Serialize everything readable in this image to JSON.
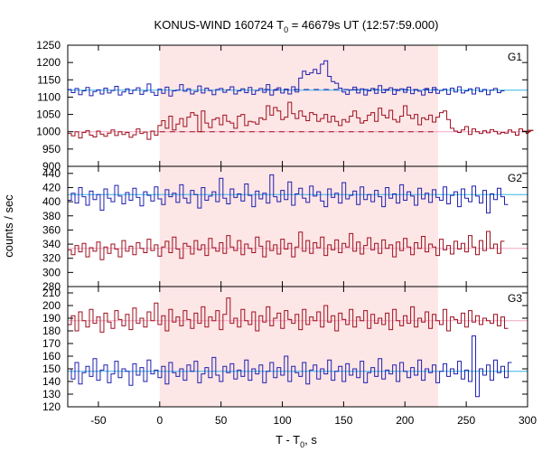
{
  "chart_data": {
    "type": "line",
    "title": {
      "prefix": "KONUS-WIND 160724 T",
      "subscript": "0",
      "suffix": " = 46679s UT (12:57:59.000)"
    },
    "xlabel": {
      "prefix": "T - T",
      "subscript": "0",
      "suffix": ", s"
    },
    "ylabel": "counts / sec",
    "xlim": [
      -75,
      300
    ],
    "x_ticks": [
      -50,
      0,
      50,
      100,
      150,
      200,
      250,
      300
    ],
    "grid": false,
    "shaded_interval": {
      "x": [
        0,
        227
      ],
      "color": "#fde6e6"
    },
    "colors": {
      "blue_series": "#1f1fb0",
      "red_series": "#9e0f1e",
      "blue_fit": "#35b6e8",
      "red_fit": "#f4a6c4",
      "blue_background": "#1f1fb0",
      "red_background": "#9e0f1e"
    },
    "panels": [
      {
        "name": "G1",
        "ylim": [
          900,
          1250
        ],
        "y_ticks": [
          900,
          950,
          1000,
          1050,
          1100,
          1150,
          1200,
          1250
        ],
        "series": [
          {
            "color_key": "blue_series",
            "bin_width": 2.944,
            "values": [
              1122,
              1113,
              1125,
              1107,
              1118,
              1128,
              1104,
              1116,
              1121,
              1109,
              1126,
              1112,
              1119,
              1131,
              1106,
              1115,
              1124,
              1110,
              1120,
              1127,
              1108,
              1117,
              1138,
              1114,
              1105,
              1123,
              1111,
              1129,
              1103,
              1118,
              1120,
              1136,
              1117,
              1124,
              1109,
              1116,
              1132,
              1112,
              1126,
              1119,
              1107,
              1122,
              1125,
              1114,
              1121,
              1130,
              1109,
              1118,
              1124,
              1113,
              1128,
              1108,
              1119,
              1125,
              1114,
              1136,
              1106,
              1120,
              1127,
              1112,
              1123,
              1109,
              1130,
              1115,
              1155,
              1175,
              1165,
              1170,
              1180,
              1168,
              1195,
              1205,
              1160,
              1145,
              1140,
              1126,
              1115,
              1108,
              1121,
              1129,
              1112,
              1124,
              1106,
              1118,
              1125,
              1111,
              1133,
              1113,
              1120,
              1127,
              1108,
              1119,
              1124,
              1114,
              1129,
              1110,
              1121,
              1117,
              1106,
              1125,
              1113,
              1128,
              1111,
              1119,
              1123,
              1108,
              1126,
              1115,
              1130,
              1112,
              1118,
              1124,
              1109,
              1127,
              1116,
              1122,
              1107,
              1120,
              1125,
              1113,
              1118
            ]
          },
          {
            "color_key": "red_series",
            "bin_width": 2.944,
            "values": [
              995,
              988,
              1000,
              982,
              998,
              1003,
              990,
              985,
              1002,
              993,
              987,
              996,
              1005,
              989,
              1000,
              992,
              998,
              984,
              991,
              1008,
              995,
              999,
              978,
              1002,
              990,
              1018,
              1032,
              1010,
              1045,
              1005,
              1022,
              1038,
              1015,
              1042,
              1055,
              1048,
              1000,
              1060,
              1025,
              1012,
              1035,
              1040,
              1020,
              1048,
              1030,
              1025,
              1010,
              1045,
              1050,
              1018,
              1030,
              1028,
              1022,
              1040,
              1035,
              1075,
              1048,
              1070,
              1060,
              1035,
              1042,
              1085,
              1052,
              1038,
              1060,
              1045,
              1032,
              1055,
              1050,
              1030,
              1038,
              1050,
              1028,
              1045,
              1030,
              1018,
              1035,
              1028,
              1045,
              1060,
              1040,
              1025,
              1032,
              1048,
              1055,
              1030,
              1068,
              1048,
              1040,
              1062,
              1035,
              1028,
              1045,
              1075,
              1048,
              1038,
              1050,
              1020,
              1040,
              1035,
              1048,
              1028,
              1042,
              1055,
              1060,
              1035,
              1010,
              1002,
              998,
              1005,
              1015,
              992,
              1008,
              1000,
              995,
              1003,
              997,
              1006,
              1001,
              994,
              998,
              996,
              1005,
              999,
              990,
              1008,
              1002,
              995,
              1000,
              1004
            ]
          }
        ],
        "lines": [
          {
            "color_key": "blue_fit",
            "style": "solid",
            "segments": [
              [
                -75,
                1120
              ],
              [
                300,
                1120
              ]
            ]
          },
          {
            "color_key": "blue_background",
            "style": "dashed",
            "segments": [
              [
                85,
                1122
              ],
              [
                227,
                1122
              ]
            ]
          },
          {
            "color_key": "red_fit",
            "style": "solid",
            "segments": [
              [
                -75,
                1000
              ],
              [
                300,
                1000
              ]
            ]
          },
          {
            "color_key": "red_background",
            "style": "dashed",
            "segments": [
              [
                0,
                1000
              ],
              [
                227,
                1000
              ]
            ]
          }
        ]
      },
      {
        "name": "G2",
        "ylim": [
          280,
          450
        ],
        "y_ticks": [
          280,
          300,
          320,
          340,
          360,
          380,
          400,
          420,
          440
        ],
        "series": [
          {
            "color_key": "blue_series",
            "bin_width": 2.944,
            "values": [
              402,
              412,
              398,
              420,
              407,
              395,
              415,
              403,
              410,
              388,
              418,
              405,
              400,
              423,
              408,
              397,
              413,
              402,
              419,
              406,
              394,
              414,
              409,
              401,
              421,
              404,
              396,
              417,
              407,
              412,
              399,
              424,
              405,
              398,
              416,
              410,
              391,
              420,
              402,
              408,
              414,
              400,
              433,
              405,
              397,
              418,
              406,
              411,
              401,
              425,
              409,
              393,
              415,
              404,
              412,
              398,
              438,
              407,
              400,
              416,
              403,
              428,
              395,
              411,
              419,
              405,
              399,
              422,
              408,
              414,
              401,
              393,
              418,
              406,
              412,
              398,
              427,
              404,
              409,
              415,
              396,
              421,
              403,
              410,
              400,
              416,
              407,
              393,
              420,
              405,
              411,
              398,
              424,
              402,
              414,
              408,
              395,
              419,
              404,
              412,
              399,
              417,
              406,
              402,
              421,
              397,
              409,
              414,
              393,
              418,
              405,
              400,
              422,
              408,
              398,
              416,
              384,
              411,
              403,
              419,
              407,
              396
            ]
          },
          {
            "color_key": "red_series",
            "bin_width": 2.944,
            "values": [
              332,
              325,
              338,
              329,
              341,
              322,
              335,
              330,
              343,
              318,
              336,
              327,
              340,
              333,
              322,
              345,
              330,
              337,
              325,
              342,
              334,
              328,
              347,
              331,
              339,
              323,
              336,
              344,
              328,
              350,
              333,
              320,
              341,
              337,
              326,
              345,
              332,
              339,
              324,
              348,
              335,
              330,
              342,
              327,
              352,
              336,
              331,
              345,
              325,
              340,
              334,
              328,
              350,
              337,
              322,
              344,
              331,
              339,
              326,
              347,
              333,
              341,
              322,
              336,
              357,
              330,
              345,
              327,
              342,
              335,
              350,
              324,
              339,
              332,
              346,
              328,
              341,
              336,
              355,
              330,
              343,
              326,
              338,
              349,
              332,
              341,
              327,
              346,
              334,
              339,
              322,
              343,
              331,
              348,
              336,
              325,
              342,
              334,
              351,
              329,
              340,
              336,
              324,
              347,
              332,
              338,
              326,
              344,
              333,
              341,
              329,
              352,
              336,
              325,
              345,
              331,
              358,
              334,
              340,
              327,
              344
            ]
          }
        ],
        "lines": [
          {
            "color_key": "blue_fit",
            "style": "solid",
            "segments": [
              [
                -75,
                410
              ],
              [
                300,
                410
              ]
            ]
          },
          {
            "color_key": "red_fit",
            "style": "solid",
            "segments": [
              [
                -75,
                334
              ],
              [
                300,
                334
              ]
            ]
          }
        ]
      },
      {
        "name": "G3",
        "ylim": [
          120,
          215
        ],
        "y_ticks": [
          120,
          130,
          140,
          150,
          160,
          170,
          180,
          190,
          200,
          210
        ],
        "series": [
          {
            "color_key": "red_series",
            "bin_width": 2.944,
            "values": [
              185,
              192,
              180,
              195,
              188,
              183,
              197,
              186,
              191,
              179,
              194,
              187,
              182,
              196,
              189,
              184,
              193,
              181,
              198,
              186,
              190,
              183,
              195,
              188,
              202,
              185,
              192,
              180,
              197,
              187,
              191,
              184,
              196,
              189,
              182,
              194,
              186,
              199,
              183,
              191,
              188,
              196,
              181,
              193,
              206,
              186,
              190,
              183,
              197,
              188,
              185,
              195,
              180,
              192,
              187,
              199,
              184,
              190,
              194,
              182,
              196,
              189,
              186,
              193,
              181,
              197,
              185,
              191,
              188,
              195,
              183,
              200,
              187,
              192,
              180,
              194,
              189,
              185,
              197,
              183,
              191,
              188,
              196,
              182,
              193,
              186,
              190,
              185,
              194,
              181,
              197,
              188,
              184,
              192,
              186,
              199,
              183,
              190,
              187,
              195,
              182,
              193,
              188,
              185,
              197,
              180,
              191,
              189,
              186,
              194,
              183,
              196,
              187,
              192,
              185,
              190,
              188,
              186,
              193,
              184,
              191,
              182
            ]
          },
          {
            "color_key": "blue_series",
            "bin_width": 2.944,
            "values": [
              150,
              142,
              155,
              138,
              147,
              152,
              144,
              158,
              141,
              149,
              153,
              139,
              146,
              156,
              143,
              150,
              148,
              137,
              154,
              145,
              151,
              140,
              157,
              146,
              149,
              143,
              152,
              138,
              155,
              147,
              144,
              150,
              141,
              153,
              148,
              156,
              139,
              146,
              151,
              143,
              159,
              145,
              140,
              152,
              147,
              154,
              142,
              149,
              144,
              157,
              141,
              150,
              146,
              153,
              139,
              148,
              155,
              143,
              151,
              145,
              160,
              140,
              152,
              147,
              144,
              155,
              138,
              149,
              153,
              142,
              150,
              146,
              157,
              141,
              148,
              152,
              140,
              154,
              145,
              150,
              143,
              156,
              139,
              147,
              151,
              144,
              158,
              142,
              149,
              146,
              153,
              140,
              155,
              148,
              143,
              151,
              145,
              157,
              141,
              150,
              147,
              153,
              139,
              148,
              154,
              144,
              150,
              146,
              156,
              142,
              149,
              140,
              176,
              128,
              150,
              145,
              153,
              141,
              157,
              147,
              152,
              143,
              155
            ]
          }
        ],
        "lines": [
          {
            "color_key": "red_fit",
            "style": "solid",
            "segments": [
              [
                -75,
                188
              ],
              [
                300,
                188
              ]
            ]
          },
          {
            "color_key": "blue_fit",
            "style": "solid",
            "segments": [
              [
                -75,
                148
              ],
              [
                300,
                148
              ]
            ]
          }
        ]
      }
    ]
  }
}
